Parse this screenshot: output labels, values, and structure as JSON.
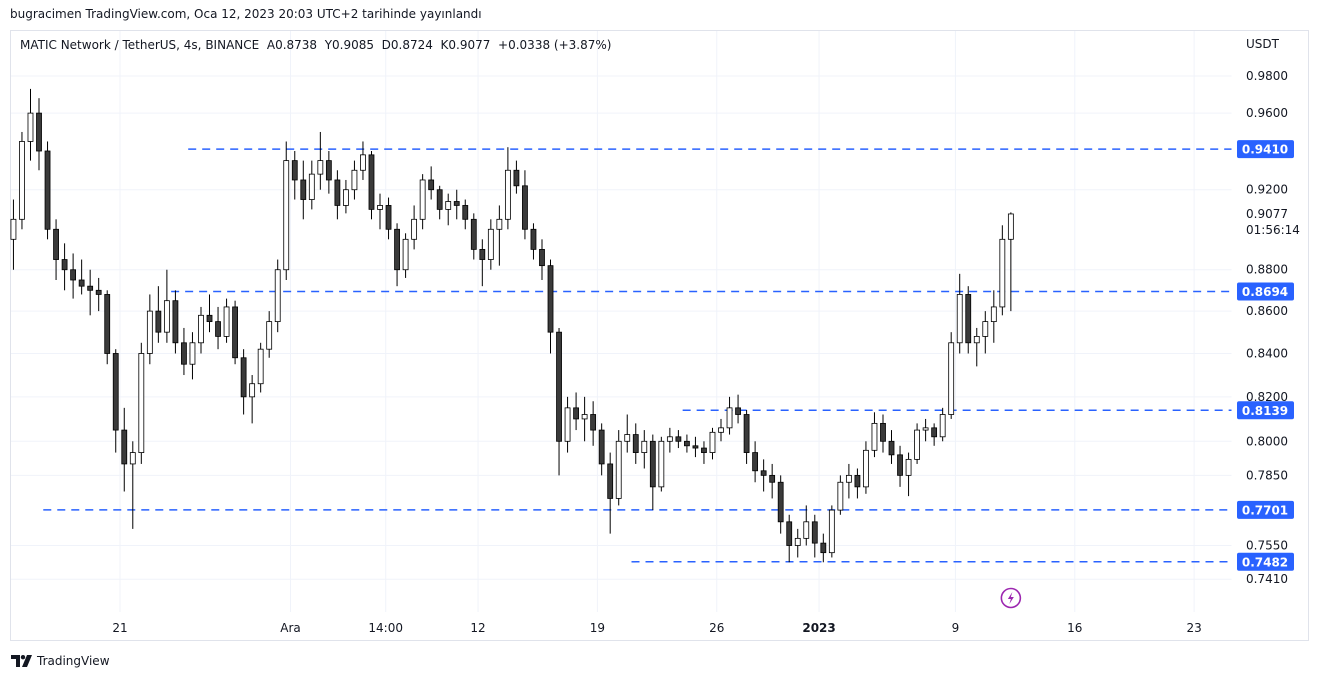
{
  "header": {
    "published": "bugracimen TradingView.com, Oca 12, 2023 20:03 UTC+2 tarihinde yayınlandı"
  },
  "legend": {
    "symbol": "MATIC Network / TetherUS, 4s, BINANCE",
    "open": "A0.8738",
    "high": "Y0.9085",
    "low": "D0.8724",
    "close": "K0.9077",
    "change": "+0.0338 (+3.87%)"
  },
  "footer": {
    "brand": "TradingView"
  },
  "colors": {
    "level_line": "#2962ff",
    "candle_up_fill": "#ffffff",
    "candle_down_fill": "#3a3a3a",
    "wick": "#000000",
    "alert_icon": "#9c27b0"
  },
  "icons": {
    "alert": "lightning-icon",
    "logo": "tradingview-logo-icon"
  },
  "chart_data": {
    "type": "candlestick",
    "title": "MATIC Network / TetherUS, 4s, BINANCE",
    "y_unit": "USDT",
    "y_scale": "log",
    "ylim": [
      0.728,
      0.995
    ],
    "grid": true,
    "y_ticks": [
      0.98,
      0.96,
      0.92,
      0.88,
      0.86,
      0.84,
      0.82,
      0.8,
      0.785,
      0.755,
      0.741
    ],
    "y_tick_labels": [
      "0.9800",
      "0.9600",
      "0.9200",
      "0.8800",
      "0.8600",
      "0.8400",
      "0.8200",
      "0.8000",
      "0.7850",
      "0.7550",
      "0.7410"
    ],
    "x_ticks": [
      {
        "t": "2022-11-21T00",
        "label": "21",
        "bold": false
      },
      {
        "t": "2022-12-01T00",
        "label": "Ara",
        "bold": false
      },
      {
        "t": "2022-12-06T14",
        "label": "14:00",
        "bold": false
      },
      {
        "t": "2022-12-12T00",
        "label": "12",
        "bold": false
      },
      {
        "t": "2022-12-19T00",
        "label": "19",
        "bold": false
      },
      {
        "t": "2022-12-26T00",
        "label": "26",
        "bold": false
      },
      {
        "t": "2023-01-01T00",
        "label": "2023",
        "bold": true
      },
      {
        "t": "2023-01-09T00",
        "label": "9",
        "bold": false
      },
      {
        "t": "2023-01-16T00",
        "label": "16",
        "bold": false
      },
      {
        "t": "2023-01-23T00",
        "label": "23",
        "bold": false
      }
    ],
    "horizontal_levels": [
      {
        "value": 0.941,
        "label": "0.9410",
        "from": "2022-11-25T00"
      },
      {
        "value": 0.8694,
        "label": "0.8694",
        "from": "2022-11-24T00"
      },
      {
        "value": 0.8139,
        "label": "0.8139",
        "from": "2022-12-24T00"
      },
      {
        "value": 0.7701,
        "label": "0.7701",
        "from": "2022-11-16T12"
      },
      {
        "value": 0.7482,
        "label": "0.7482",
        "from": "2022-12-21T00"
      }
    ],
    "last_price": {
      "value": 0.9077,
      "label": "0.9077",
      "countdown": "01:56:14"
    },
    "alert_marker_time": "2023-01-12T00",
    "columns": [
      "time",
      "open",
      "high",
      "low",
      "close"
    ],
    "candles": [
      [
        "2022-11-14T12",
        0.895,
        0.915,
        0.88,
        0.905
      ],
      [
        "2022-11-15T00",
        0.905,
        0.95,
        0.9,
        0.945
      ],
      [
        "2022-11-15T12",
        0.945,
        0.973,
        0.935,
        0.96
      ],
      [
        "2022-11-16T00",
        0.96,
        0.968,
        0.93,
        0.94
      ],
      [
        "2022-11-16T12",
        0.94,
        0.945,
        0.895,
        0.9
      ],
      [
        "2022-11-17T00",
        0.9,
        0.905,
        0.875,
        0.885
      ],
      [
        "2022-11-17T12",
        0.885,
        0.893,
        0.87,
        0.88
      ],
      [
        "2022-11-18T00",
        0.88,
        0.888,
        0.866,
        0.875
      ],
      [
        "2022-11-18T12",
        0.875,
        0.885,
        0.868,
        0.872
      ],
      [
        "2022-11-19T00",
        0.872,
        0.88,
        0.858,
        0.87
      ],
      [
        "2022-11-19T12",
        0.87,
        0.876,
        0.86,
        0.868
      ],
      [
        "2022-11-20T00",
        0.868,
        0.87,
        0.835,
        0.84
      ],
      [
        "2022-11-20T12",
        0.84,
        0.842,
        0.795,
        0.805
      ],
      [
        "2022-11-21T00",
        0.805,
        0.815,
        0.778,
        0.79
      ],
      [
        "2022-11-21T12",
        0.79,
        0.8,
        0.762,
        0.795
      ],
      [
        "2022-11-22T00",
        0.795,
        0.845,
        0.79,
        0.84
      ],
      [
        "2022-11-22T12",
        0.84,
        0.868,
        0.835,
        0.86
      ],
      [
        "2022-11-23T00",
        0.86,
        0.872,
        0.845,
        0.85
      ],
      [
        "2022-11-23T12",
        0.85,
        0.88,
        0.845,
        0.865
      ],
      [
        "2022-11-24T00",
        0.865,
        0.87,
        0.84,
        0.845
      ],
      [
        "2022-11-24T12",
        0.845,
        0.852,
        0.83,
        0.835
      ],
      [
        "2022-11-25T00",
        0.835,
        0.85,
        0.828,
        0.845
      ],
      [
        "2022-11-25T12",
        0.845,
        0.862,
        0.84,
        0.858
      ],
      [
        "2022-11-26T00",
        0.858,
        0.868,
        0.85,
        0.855
      ],
      [
        "2022-11-26T12",
        0.855,
        0.862,
        0.842,
        0.848
      ],
      [
        "2022-11-27T00",
        0.848,
        0.866,
        0.845,
        0.862
      ],
      [
        "2022-11-27T12",
        0.862,
        0.865,
        0.835,
        0.838
      ],
      [
        "2022-11-28T00",
        0.838,
        0.842,
        0.812,
        0.82
      ],
      [
        "2022-11-28T12",
        0.82,
        0.83,
        0.808,
        0.826
      ],
      [
        "2022-11-29T00",
        0.826,
        0.845,
        0.822,
        0.842
      ],
      [
        "2022-11-29T12",
        0.842,
        0.86,
        0.838,
        0.855
      ],
      [
        "2022-11-30T00",
        0.855,
        0.885,
        0.85,
        0.88
      ],
      [
        "2022-11-30T12",
        0.88,
        0.945,
        0.875,
        0.935
      ],
      [
        "2022-12-01T00",
        0.935,
        0.94,
        0.915,
        0.925
      ],
      [
        "2022-12-01T12",
        0.925,
        0.935,
        0.905,
        0.915
      ],
      [
        "2022-12-02T00",
        0.915,
        0.935,
        0.91,
        0.928
      ],
      [
        "2022-12-02T12",
        0.928,
        0.95,
        0.92,
        0.935
      ],
      [
        "2022-12-03T00",
        0.935,
        0.94,
        0.918,
        0.925
      ],
      [
        "2022-12-03T12",
        0.925,
        0.93,
        0.905,
        0.912
      ],
      [
        "2022-12-04T00",
        0.912,
        0.925,
        0.908,
        0.92
      ],
      [
        "2022-12-04T12",
        0.92,
        0.935,
        0.915,
        0.93
      ],
      [
        "2022-12-05T00",
        0.93,
        0.945,
        0.925,
        0.938
      ],
      [
        "2022-12-05T12",
        0.938,
        0.94,
        0.905,
        0.91
      ],
      [
        "2022-12-06T00",
        0.91,
        0.918,
        0.9,
        0.912
      ],
      [
        "2022-12-06T12",
        0.912,
        0.916,
        0.895,
        0.9
      ],
      [
        "2022-12-07T00",
        0.9,
        0.903,
        0.872,
        0.88
      ],
      [
        "2022-12-07T12",
        0.88,
        0.898,
        0.876,
        0.895
      ],
      [
        "2022-12-08T00",
        0.895,
        0.912,
        0.89,
        0.905
      ],
      [
        "2022-12-08T12",
        0.905,
        0.928,
        0.9,
        0.925
      ],
      [
        "2022-12-09T00",
        0.925,
        0.932,
        0.915,
        0.92
      ],
      [
        "2022-12-09T12",
        0.92,
        0.922,
        0.905,
        0.91
      ],
      [
        "2022-12-10T00",
        0.91,
        0.918,
        0.902,
        0.914
      ],
      [
        "2022-12-10T12",
        0.914,
        0.92,
        0.905,
        0.912
      ],
      [
        "2022-12-11T00",
        0.912,
        0.915,
        0.9,
        0.905
      ],
      [
        "2022-12-11T12",
        0.905,
        0.908,
        0.885,
        0.89
      ],
      [
        "2022-12-12T00",
        0.89,
        0.895,
        0.872,
        0.885
      ],
      [
        "2022-12-12T12",
        0.885,
        0.905,
        0.88,
        0.9
      ],
      [
        "2022-12-13T00",
        0.9,
        0.912,
        0.882,
        0.905
      ],
      [
        "2022-12-13T12",
        0.905,
        0.942,
        0.9,
        0.93
      ],
      [
        "2022-12-14T00",
        0.93,
        0.935,
        0.918,
        0.922
      ],
      [
        "2022-12-14T12",
        0.922,
        0.93,
        0.895,
        0.9
      ],
      [
        "2022-12-15T00",
        0.9,
        0.903,
        0.885,
        0.89
      ],
      [
        "2022-12-15T12",
        0.89,
        0.895,
        0.875,
        0.882
      ],
      [
        "2022-12-16T00",
        0.882,
        0.885,
        0.84,
        0.85
      ],
      [
        "2022-12-16T12",
        0.85,
        0.852,
        0.785,
        0.8
      ],
      [
        "2022-12-17T00",
        0.8,
        0.82,
        0.795,
        0.815
      ],
      [
        "2022-12-17T12",
        0.815,
        0.822,
        0.805,
        0.81
      ],
      [
        "2022-12-18T00",
        0.81,
        0.82,
        0.8,
        0.812
      ],
      [
        "2022-12-18T12",
        0.812,
        0.818,
        0.798,
        0.805
      ],
      [
        "2022-12-19T00",
        0.805,
        0.808,
        0.785,
        0.79
      ],
      [
        "2022-12-19T12",
        0.79,
        0.795,
        0.76,
        0.775
      ],
      [
        "2022-12-20T00",
        0.775,
        0.805,
        0.772,
        0.8
      ],
      [
        "2022-12-20T12",
        0.8,
        0.812,
        0.795,
        0.803
      ],
      [
        "2022-12-21T00",
        0.803,
        0.808,
        0.79,
        0.795
      ],
      [
        "2022-12-21T12",
        0.795,
        0.805,
        0.788,
        0.8
      ],
      [
        "2022-12-22T00",
        0.8,
        0.803,
        0.77,
        0.78
      ],
      [
        "2022-12-22T12",
        0.78,
        0.802,
        0.778,
        0.8
      ],
      [
        "2022-12-23T00",
        0.8,
        0.806,
        0.795,
        0.802
      ],
      [
        "2022-12-23T12",
        0.802,
        0.805,
        0.797,
        0.8
      ],
      [
        "2022-12-24T00",
        0.8,
        0.803,
        0.795,
        0.798
      ],
      [
        "2022-12-24T12",
        0.798,
        0.802,
        0.793,
        0.797
      ],
      [
        "2022-12-25T00",
        0.797,
        0.8,
        0.79,
        0.795
      ],
      [
        "2022-12-25T12",
        0.795,
        0.806,
        0.792,
        0.804
      ],
      [
        "2022-12-26T00",
        0.804,
        0.81,
        0.8,
        0.806
      ],
      [
        "2022-12-26T12",
        0.806,
        0.82,
        0.803,
        0.815
      ],
      [
        "2022-12-27T00",
        0.815,
        0.821,
        0.808,
        0.812
      ],
      [
        "2022-12-27T12",
        0.812,
        0.814,
        0.79,
        0.795
      ],
      [
        "2022-12-28T00",
        0.795,
        0.8,
        0.782,
        0.787
      ],
      [
        "2022-12-28T12",
        0.787,
        0.792,
        0.778,
        0.785
      ],
      [
        "2022-12-29T00",
        0.785,
        0.79,
        0.775,
        0.782
      ],
      [
        "2022-12-29T12",
        0.782,
        0.785,
        0.76,
        0.765
      ],
      [
        "2022-12-30T00",
        0.765,
        0.768,
        0.748,
        0.755
      ],
      [
        "2022-12-30T12",
        0.755,
        0.762,
        0.75,
        0.758
      ],
      [
        "2022-12-31T00",
        0.758,
        0.772,
        0.755,
        0.765
      ],
      [
        "2022-12-31T12",
        0.765,
        0.768,
        0.75,
        0.756
      ],
      [
        "2023-01-01T00",
        0.756,
        0.76,
        0.748,
        0.752
      ],
      [
        "2023-01-01T12",
        0.752,
        0.772,
        0.75,
        0.77
      ],
      [
        "2023-01-02T00",
        0.77,
        0.785,
        0.768,
        0.782
      ],
      [
        "2023-01-02T12",
        0.782,
        0.79,
        0.775,
        0.785
      ],
      [
        "2023-01-03T00",
        0.785,
        0.788,
        0.775,
        0.78
      ],
      [
        "2023-01-03T12",
        0.78,
        0.8,
        0.777,
        0.796
      ],
      [
        "2023-01-04T00",
        0.796,
        0.813,
        0.793,
        0.808
      ],
      [
        "2023-01-04T12",
        0.808,
        0.812,
        0.795,
        0.8
      ],
      [
        "2023-01-05T00",
        0.8,
        0.805,
        0.79,
        0.794
      ],
      [
        "2023-01-05T12",
        0.794,
        0.798,
        0.78,
        0.785
      ],
      [
        "2023-01-06T00",
        0.785,
        0.795,
        0.776,
        0.792
      ],
      [
        "2023-01-06T12",
        0.792,
        0.808,
        0.79,
        0.805
      ],
      [
        "2023-01-07T00",
        0.805,
        0.81,
        0.8,
        0.806
      ],
      [
        "2023-01-07T12",
        0.806,
        0.808,
        0.798,
        0.802
      ],
      [
        "2023-01-08T00",
        0.802,
        0.815,
        0.8,
        0.812
      ],
      [
        "2023-01-08T12",
        0.812,
        0.85,
        0.81,
        0.845
      ],
      [
        "2023-01-09T00",
        0.845,
        0.878,
        0.84,
        0.868
      ],
      [
        "2023-01-09T12",
        0.868,
        0.872,
        0.84,
        0.845
      ],
      [
        "2023-01-10T00",
        0.845,
        0.852,
        0.834,
        0.848
      ],
      [
        "2023-01-10T12",
        0.848,
        0.86,
        0.84,
        0.855
      ],
      [
        "2023-01-11T00",
        0.855,
        0.87,
        0.845,
        0.862
      ],
      [
        "2023-01-11T12",
        0.862,
        0.902,
        0.858,
        0.895
      ],
      [
        "2023-01-12T00",
        0.895,
        0.9085,
        0.86,
        0.9077
      ]
    ]
  }
}
